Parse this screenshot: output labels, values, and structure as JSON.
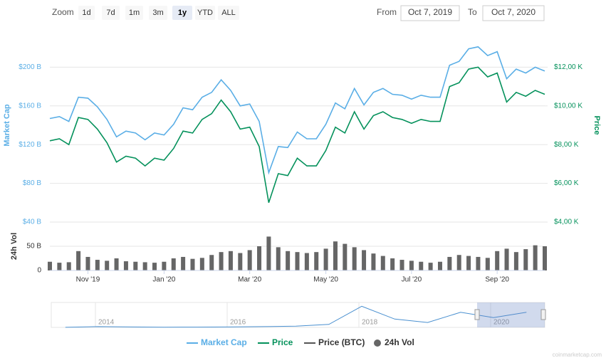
{
  "chart_data": {
    "type": "line",
    "categories": [
      null,
      null,
      null,
      null,
      "Nov '19",
      null,
      null,
      null,
      null,
      null,
      null,
      null,
      "Jan '20",
      null,
      null,
      null,
      null,
      null,
      null,
      null,
      null,
      "Mar '20",
      null,
      null,
      null,
      null,
      null,
      null,
      null,
      "May '20",
      null,
      null,
      null,
      null,
      null,
      null,
      null,
      null,
      "Jul '20",
      null,
      null,
      null,
      null,
      null,
      null,
      null,
      null,
      "Sep '20",
      null,
      null,
      null,
      null,
      null
    ],
    "series": [
      {
        "name": "Market Cap",
        "color": "#5aaee6",
        "axis": "y",
        "values": [
          147,
          149,
          144,
          169,
          168,
          159,
          146,
          128,
          134,
          132,
          125,
          132,
          130,
          141,
          158,
          156,
          169,
          174,
          187,
          176,
          160,
          162,
          144,
          91,
          118,
          117,
          133,
          126,
          126,
          141,
          163,
          157,
          178,
          161,
          174,
          178,
          172,
          171,
          167,
          171,
          169,
          169,
          202,
          206,
          219,
          221,
          212,
          216,
          188,
          198,
          194,
          200,
          196
        ]
      },
      {
        "name": "Price",
        "color": "#04915b",
        "axis": "y2",
        "values": [
          8200,
          8300,
          8000,
          9400,
          9300,
          8800,
          8100,
          7100,
          7400,
          7300,
          6900,
          7300,
          7200,
          7800,
          8700,
          8600,
          9300,
          9600,
          10300,
          9700,
          8800,
          8900,
          7900,
          5000,
          6500,
          6400,
          7300,
          6900,
          6900,
          7700,
          8900,
          8600,
          9700,
          8800,
          9500,
          9700,
          9400,
          9300,
          9100,
          9300,
          9200,
          9200,
          11000,
          11200,
          11900,
          12000,
          11500,
          11700,
          10200,
          10700,
          10500,
          10800,
          10600
        ]
      },
      {
        "name": "Price (BTC)",
        "color": "#555555"
      },
      {
        "name": "24h Vol",
        "color": "#666666",
        "axis": "vol",
        "type": "bar",
        "values": [
          18,
          16,
          17,
          40,
          28,
          22,
          20,
          25,
          19,
          18,
          17,
          16,
          18,
          25,
          28,
          24,
          26,
          32,
          38,
          40,
          36,
          42,
          50,
          70,
          48,
          40,
          38,
          36,
          38,
          45,
          60,
          55,
          48,
          42,
          35,
          30,
          25,
          22,
          20,
          18,
          16,
          18,
          28,
          32,
          30,
          28,
          26,
          40,
          45,
          38,
          44,
          52,
          50
        ]
      }
    ],
    "y_label": "Market Cap",
    "y2_label": "Price",
    "vol_label": "24h Vol",
    "ylim": [
      40,
      240
    ],
    "yticks": [
      {
        "value": 40,
        "label": "$40 B"
      },
      {
        "value": 80,
        "label": "$80 B"
      },
      {
        "value": 120,
        "label": "$120 B"
      },
      {
        "value": 160,
        "label": "$160 B"
      },
      {
        "value": 200,
        "label": "$200 B"
      }
    ],
    "y2lim": [
      4000,
      14000
    ],
    "y2ticks": [
      {
        "value": 4000,
        "label": "$4,00 K"
      },
      {
        "value": 6000,
        "label": "$6,00 K"
      },
      {
        "value": 8000,
        "label": "$8,00 K"
      },
      {
        "value": 10000,
        "label": "$10,00 K"
      },
      {
        "value": 12000,
        "label": "$12,00 K"
      }
    ],
    "vol_ylim": [
      0,
      100
    ],
    "vol_yticks": [
      0,
      {
        "value": 50,
        "label": "50 B"
      }
    ],
    "grid": true,
    "navigator": {
      "categories": [
        null,
        "2014",
        null,
        null,
        null,
        "2016",
        null,
        null,
        null,
        "2018",
        null,
        null,
        null,
        "2020",
        null
      ],
      "values": [
        1,
        10,
        6,
        3,
        4,
        6,
        10,
        17,
        40,
        280,
        110,
        65,
        200,
        130,
        200
      ],
      "ylim": [
        0,
        320
      ]
    },
    "zoom": {
      "label": "Zoom",
      "buttons": [
        "1d",
        "7d",
        "1m",
        "3m",
        "1y",
        "YTD",
        "ALL"
      ],
      "active": 4,
      "from_label": "From",
      "from": "Oct 7, 2019",
      "to_label": "To",
      "to": "Oct 7, 2020"
    },
    "watermark": "coinmarketcap.com"
  }
}
